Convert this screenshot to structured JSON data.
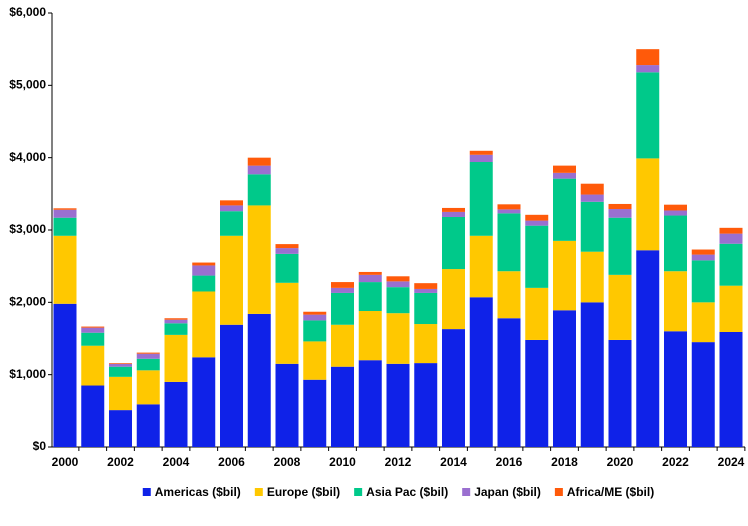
{
  "chart_data": {
    "type": "stacked_bar",
    "categories": [
      "2000",
      null,
      "2002",
      null,
      "2004",
      null,
      "2006",
      null,
      "2008",
      null,
      "2010",
      null,
      "2012",
      null,
      "2014",
      null,
      "2016",
      null,
      "2018",
      null,
      "2020",
      null,
      "2022",
      null,
      "2024"
    ],
    "series": [
      {
        "name": "Americas ($bil)",
        "color": "#0f22e8",
        "values": [
          1980,
          850,
          510,
          590,
          900,
          1240,
          1690,
          1840,
          1150,
          930,
          1110,
          1200,
          1150,
          1160,
          1630,
          2070,
          1780,
          1480,
          1890,
          2000,
          1480,
          2720,
          1600,
          1450,
          1590
        ]
      },
      {
        "name": "Europe ($bil)",
        "color": "#ffc800",
        "values": [
          940,
          550,
          460,
          470,
          650,
          910,
          1230,
          1500,
          1120,
          530,
          580,
          680,
          700,
          540,
          830,
          850,
          650,
          720,
          960,
          700,
          900,
          1270,
          830,
          550,
          640
        ]
      },
      {
        "name": "Asia Pac ($bil)",
        "color": "#00c98a",
        "values": [
          250,
          180,
          140,
          160,
          160,
          220,
          340,
          430,
          400,
          290,
          440,
          400,
          360,
          430,
          720,
          1020,
          800,
          860,
          860,
          690,
          790,
          1190,
          770,
          580,
          580
        ]
      },
      {
        "name": "Japan ($bil)",
        "color": "#9a6fd0",
        "values": [
          110,
          70,
          40,
          70,
          50,
          140,
          80,
          120,
          80,
          80,
          70,
          100,
          80,
          55,
          70,
          100,
          55,
          70,
          80,
          100,
          120,
          100,
          70,
          80,
          140
        ]
      },
      {
        "name": "Africa/ME ($bil)",
        "color": "#ff5a0a",
        "values": [
          20,
          15,
          10,
          15,
          20,
          40,
          70,
          110,
          55,
          40,
          80,
          40,
          70,
          80,
          55,
          55,
          70,
          80,
          100,
          150,
          70,
          220,
          80,
          70,
          80
        ]
      }
    ],
    "ylim": [
      0,
      6000
    ],
    "yticks": [
      {
        "value": 0,
        "label": "$0"
      },
      {
        "value": 1000,
        "label": "$1,000"
      },
      {
        "value": 2000,
        "label": "$2,000"
      },
      {
        "value": 3000,
        "label": "$3,000"
      },
      {
        "value": 4000,
        "label": "$4,000"
      },
      {
        "value": 5000,
        "label": "$5,000"
      },
      {
        "value": 6000,
        "label": "$6,000"
      }
    ],
    "legend": "bottom"
  }
}
